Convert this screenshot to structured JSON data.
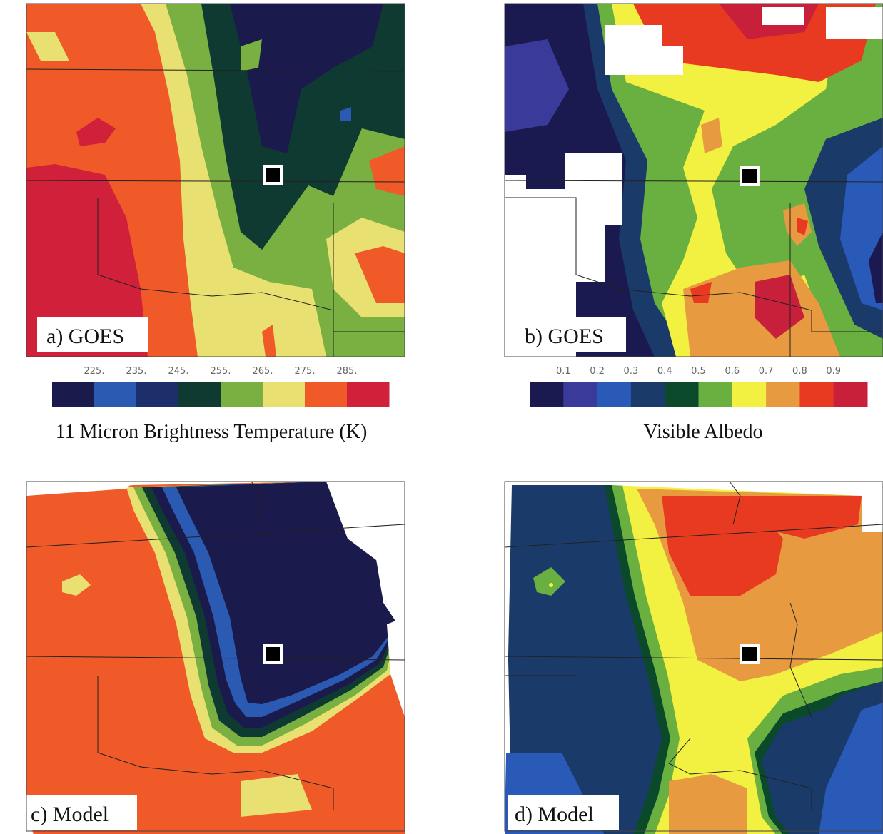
{
  "panels": [
    {
      "label": "a) GOES"
    },
    {
      "label": "b) GOES"
    },
    {
      "label": "c) Model"
    },
    {
      "label": "d) Model"
    }
  ],
  "colorbars": [
    {
      "title": "11 Micron Brightness Temperature (K)",
      "ticks": [
        "225.",
        "235.",
        "245.",
        "255.",
        "265.",
        "275.",
        "285."
      ],
      "colors": [
        "#1b1a4c",
        "#2b5ab2",
        "#1d2f6a",
        "#0f3a31",
        "#7ab042",
        "#e9e072",
        "#f05a28",
        "#d0203a"
      ]
    },
    {
      "title": "Visible Albedo",
      "ticks": [
        "0.1",
        "0.2",
        "0.3",
        "0.4",
        "0.5",
        "0.6",
        "0.7",
        "0.8",
        "0.9"
      ],
      "colors": [
        "#1a1a50",
        "#3a3a9a",
        "#2a5ab8",
        "#1a3a6a",
        "#0a4a2a",
        "#6ab040",
        "#f2f040",
        "#e89a40",
        "#e83a20",
        "#c8203a"
      ]
    }
  ]
}
